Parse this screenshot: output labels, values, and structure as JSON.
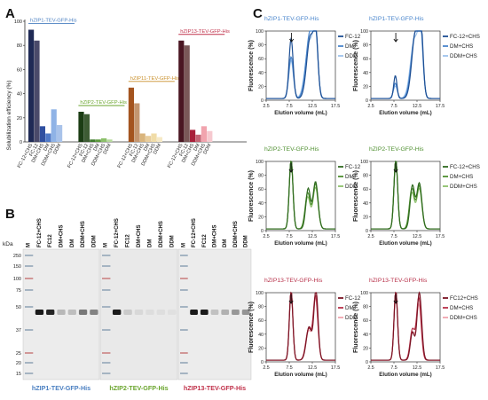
{
  "colors": {
    "zip1": "#4a7fc1",
    "zip2": "#6aa52d",
    "zip11": "#c98f2a",
    "zip13": "#c0314a"
  },
  "panel_a": {
    "letter": "A",
    "ylabel": "Solubilization efficiency (%)",
    "groups": [
      {
        "protein": "hZIP1-TEV-GFP-His",
        "color": "#4a7fc1"
      },
      {
        "protein": "hZIP2-TEV-GFP-His",
        "color": "#6aa52d"
      },
      {
        "protein": "hZIP11-TEV-GFP-His",
        "color": "#c98f2a"
      },
      {
        "protein": "hZIP13-TEV-GFP-His",
        "color": "#c0314a"
      }
    ]
  },
  "panel_b": {
    "letter": "B",
    "kda_label": "kDa",
    "markers": [
      "250",
      "150",
      "100",
      "75",
      "50",
      "37",
      "25",
      "20",
      "15"
    ],
    "lane_groups": [
      {
        "protein": "hZIP1-TEV-GFP-His",
        "color": "#4a7fc1",
        "lanes": [
          "M",
          "FC-12+CHS",
          "FC12",
          "DM+CHS",
          "DM",
          "DDM+CHS",
          "DDM"
        ]
      },
      {
        "protein": "hZIP2-TEV-GFP-His",
        "color": "#6aa52d",
        "lanes": [
          "M",
          "FC-12+CHS",
          "FC12",
          "DM+CHS",
          "DM",
          "DDM+CHS",
          "DDM"
        ]
      },
      {
        "protein": "hZIP13-TEV-GFP-His",
        "color": "#c0314a",
        "lanes": [
          "M",
          "FC-12+CHS",
          "FC12",
          "DM+CHS",
          "DM",
          "DDM+CHS",
          "DDM"
        ]
      }
    ]
  },
  "panel_c": {
    "letter": "C",
    "ylabel": "Fluorescence (%)",
    "xlabel": "Elution volume (mL)",
    "xticks": [
      "2.5",
      "7.5",
      "12.5",
      "17.5"
    ],
    "yticks": [
      "0",
      "20",
      "40",
      "60",
      "80",
      "100"
    ]
  },
  "chart_data": [
    {
      "type": "bar",
      "ylabel": "Solubilization efficiency (%)",
      "ylim": [
        0,
        100
      ],
      "yticks": [
        0,
        20,
        40,
        60,
        80,
        100
      ],
      "groups": [
        {
          "name": "hZIP1-TEV-GFP-His",
          "categories": [
            "FC-12+CHS",
            "FC-12",
            "DM+CHS",
            "DM",
            "DDM+CHS",
            "DDM"
          ],
          "values": [
            93,
            84,
            13,
            7,
            27,
            14
          ],
          "colors": [
            "#1f2a55",
            "#4a4a6a",
            "#2f4fa0",
            "#4f79c8",
            "#8fb3e6",
            "#a9c3ea"
          ]
        },
        {
          "name": "hZIP2-TEV-GFP-His",
          "categories": [
            "FC-12+CHS",
            "FC-12",
            "DM+CHS",
            "DM",
            "DDM+CHS",
            "DDM"
          ],
          "values": [
            25,
            23,
            2,
            2,
            3,
            2
          ],
          "colors": [
            "#1c3d14",
            "#3e5c34",
            "#3d7a2a",
            "#5c9a3d",
            "#8cc06a",
            "#b5d99b"
          ]
        },
        {
          "name": "hZIP11-TEV-GFP-His",
          "categories": [
            "FC-12+CHS",
            "FC-12",
            "DM+CHS",
            "DM",
            "DDM+CHS",
            "DDM"
          ],
          "values": [
            45,
            32,
            7,
            5,
            7,
            4
          ],
          "colors": [
            "#a4541f",
            "#c49670",
            "#d9b47c",
            "#e8cd9c",
            "#f0dca7",
            "#f6e9c6"
          ]
        },
        {
          "name": "hZIP13-TEV-GFP-His",
          "categories": [
            "FC-12+CHS",
            "FC-12",
            "DM+CHS",
            "DM",
            "DDM+CHS",
            "DDM"
          ],
          "values": [
            84,
            80,
            10,
            6,
            13,
            9
          ],
          "colors": [
            "#4a1622",
            "#7a5858",
            "#a8203a",
            "#c46474",
            "#f1a4ae",
            "#f6c9cf"
          ]
        }
      ]
    },
    {
      "type": "line",
      "title": "hZIP1-TEV-GFP-His",
      "xlabel": "Elution volume (mL)",
      "ylabel": "Fluorescence (%)",
      "xlim": [
        2.5,
        17.5
      ],
      "ylim": [
        0,
        100
      ],
      "arrow_x": 8.0,
      "series": [
        {
          "name": "FC-12",
          "color": "#1d4f94",
          "peaks": [
            [
              7.9,
              86,
              0.45
            ],
            [
              12.1,
              90,
              0.8
            ],
            [
              13.3,
              75,
              0.45
            ]
          ]
        },
        {
          "name": "DM",
          "color": "#4a86cc",
          "peaks": [
            [
              7.9,
              60,
              0.5
            ],
            [
              12.0,
              95,
              0.85
            ],
            [
              13.2,
              80,
              0.5
            ]
          ]
        },
        {
          "name": "DDM",
          "color": "#9ec3ec",
          "peaks": [
            [
              7.9,
              55,
              0.5
            ],
            [
              11.9,
              82,
              0.9
            ],
            [
              13.2,
              78,
              0.5
            ]
          ]
        }
      ]
    },
    {
      "type": "line",
      "title": "hZIP1-TEV-GFP-His",
      "xlabel": "Elution volume (mL)",
      "ylabel": "Fluorescence (%)",
      "xlim": [
        2.5,
        17.5
      ],
      "ylim": [
        0,
        100
      ],
      "arrow_x": 7.9,
      "series": [
        {
          "name": "FC-12+CHS",
          "color": "#1d4f94",
          "peaks": [
            [
              7.8,
              33,
              0.35
            ],
            [
              12.2,
              97,
              0.8
            ],
            [
              13.4,
              82,
              0.45
            ]
          ]
        },
        {
          "name": "DM+CHS",
          "color": "#4a86cc",
          "peaks": [
            [
              7.8,
              22,
              0.4
            ],
            [
              12.1,
              92,
              0.85
            ],
            [
              13.3,
              80,
              0.5
            ]
          ]
        },
        {
          "name": "DDM+CHS",
          "color": "#9ec3ec",
          "peaks": [
            [
              7.8,
              18,
              0.45
            ],
            [
              12.0,
              86,
              0.9
            ],
            [
              13.3,
              78,
              0.5
            ]
          ]
        }
      ]
    },
    {
      "type": "line",
      "title": "hZIP2-TEV-GFP-His",
      "xlabel": "Elution volume (mL)",
      "ylabel": "Fluorescence (%)",
      "xlim": [
        2.5,
        17.5
      ],
      "ylim": [
        0,
        100
      ],
      "arrow_x": 7.9,
      "series": [
        {
          "name": "FC-12",
          "color": "#2f6a1f",
          "peaks": [
            [
              7.9,
              100,
              0.4
            ],
            [
              11.6,
              58,
              0.5
            ],
            [
              13.2,
              68,
              0.55
            ]
          ]
        },
        {
          "name": "DM",
          "color": "#4e8f2f",
          "peaks": [
            [
              7.9,
              100,
              0.4
            ],
            [
              11.5,
              52,
              0.55
            ],
            [
              13.2,
              65,
              0.55
            ]
          ]
        },
        {
          "name": "DDM",
          "color": "#8cc06a",
          "peaks": [
            [
              7.9,
              100,
              0.4
            ],
            [
              11.5,
              46,
              0.55
            ],
            [
              13.2,
              60,
              0.55
            ]
          ]
        }
      ]
    },
    {
      "type": "line",
      "title": "hZIP2-TEV-GFP-His",
      "xlabel": "Elution volume (mL)",
      "ylabel": "Fluorescence (%)",
      "xlim": [
        2.5,
        17.5
      ],
      "ylim": [
        0,
        100
      ],
      "arrow_x": 7.9,
      "series": [
        {
          "name": "FC-12+CHS",
          "color": "#2f6a1f",
          "peaks": [
            [
              7.9,
              100,
              0.4
            ],
            [
              11.5,
              62,
              0.5
            ],
            [
              13.0,
              66,
              0.55
            ]
          ]
        },
        {
          "name": "DM+CHS",
          "color": "#4e8f2f",
          "peaks": [
            [
              7.9,
              100,
              0.4
            ],
            [
              11.4,
              58,
              0.55
            ],
            [
              13.0,
              62,
              0.55
            ]
          ]
        },
        {
          "name": "DDM+CHS",
          "color": "#8cc06a",
          "peaks": [
            [
              7.9,
              100,
              0.4
            ],
            [
              11.4,
              52,
              0.55
            ],
            [
              13.0,
              58,
              0.55
            ]
          ]
        }
      ]
    },
    {
      "type": "line",
      "title": "hZIP13-TEV-GFP-His",
      "xlabel": "Elution volume (mL)",
      "ylabel": "Fluorescence (%)",
      "xlim": [
        2.5,
        17.5
      ],
      "ylim": [
        0,
        100
      ],
      "arrow_x": 7.9,
      "series": [
        {
          "name": "FC-12",
          "color": "#7a1424",
          "peaks": [
            [
              7.9,
              100,
              0.38
            ],
            [
              11.8,
              48,
              0.6
            ],
            [
              13.3,
              100,
              0.45
            ]
          ]
        },
        {
          "name": "DM",
          "color": "#b8324a",
          "peaks": [
            [
              7.9,
              100,
              0.38
            ],
            [
              11.7,
              45,
              0.6
            ],
            [
              13.2,
              92,
              0.5
            ]
          ]
        },
        {
          "name": "DDM",
          "color": "#f1a4ae",
          "peaks": [
            [
              7.9,
              100,
              0.38
            ],
            [
              11.7,
              42,
              0.6
            ],
            [
              13.2,
              88,
              0.5
            ]
          ]
        }
      ]
    },
    {
      "type": "line",
      "title": "hZIP13-TEV-GFP-His",
      "xlabel": "Elution volume (mL)",
      "ylabel": "Fluorescence (%)",
      "xlim": [
        2.5,
        17.5
      ],
      "ylim": [
        0,
        100
      ],
      "arrow_x": 7.9,
      "series": [
        {
          "name": "FC12+CHS",
          "color": "#7a1424",
          "peaks": [
            [
              7.9,
              100,
              0.38
            ],
            [
              11.5,
              40,
              0.45
            ],
            [
              13.0,
              98,
              0.5
            ]
          ]
        },
        {
          "name": "DM+CHS",
          "color": "#b8324a",
          "peaks": [
            [
              7.9,
              100,
              0.38
            ],
            [
              11.5,
              44,
              0.5
            ],
            [
              12.9,
              90,
              0.5
            ]
          ]
        },
        {
          "name": "DDM+CHS",
          "color": "#f1a4ae",
          "peaks": [
            [
              7.9,
              100,
              0.38
            ],
            [
              11.5,
              38,
              0.5
            ],
            [
              12.9,
              80,
              0.5
            ]
          ]
        }
      ]
    }
  ]
}
